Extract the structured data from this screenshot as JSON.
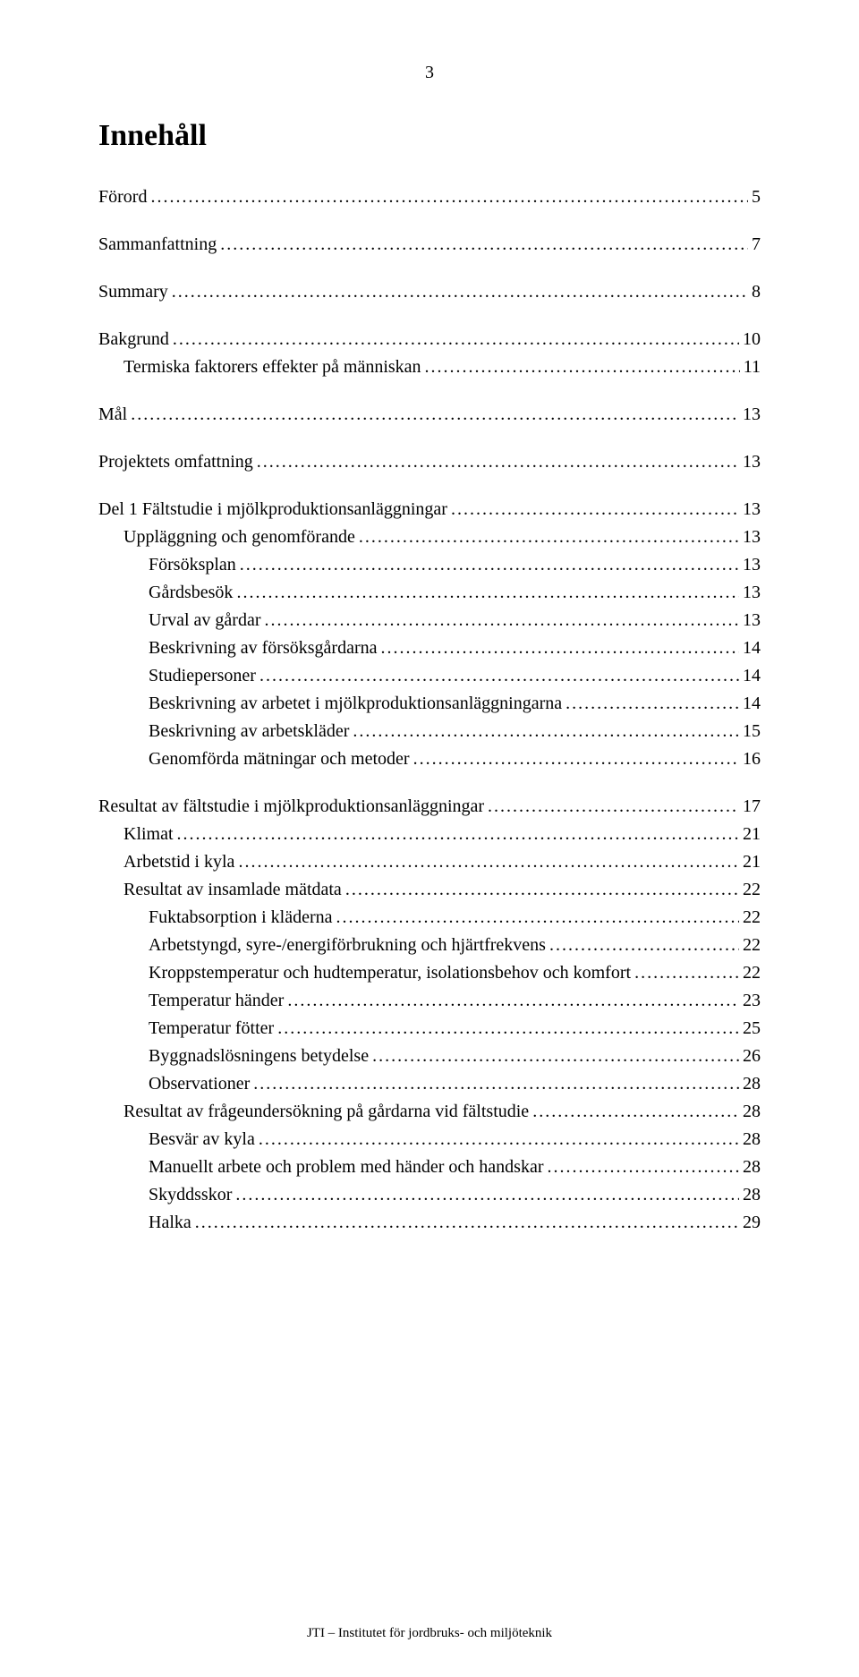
{
  "pageNumber": "3",
  "title": "Innehåll",
  "footer": "JTI – Institutet för jordbruks- och miljöteknik",
  "toc": [
    {
      "label": "Förord",
      "page": "5",
      "indent": 0,
      "gapAfter": true
    },
    {
      "label": "Sammanfattning",
      "page": "7",
      "indent": 0,
      "gapAfter": true
    },
    {
      "label": "Summary",
      "page": "8",
      "indent": 0,
      "gapAfter": true
    },
    {
      "label": "Bakgrund",
      "page": "10",
      "indent": 0,
      "gapAfter": false
    },
    {
      "label": "Termiska faktorers effekter på människan",
      "page": "11",
      "indent": 1,
      "gapAfter": true
    },
    {
      "label": "Mål",
      "page": "13",
      "indent": 0,
      "gapAfter": true
    },
    {
      "label": "Projektets omfattning",
      "page": "13",
      "indent": 0,
      "gapAfter": true
    },
    {
      "label": "Del 1 Fältstudie i mjölkproduktionsanläggningar",
      "page": "13",
      "indent": 0,
      "gapAfter": false
    },
    {
      "label": "Uppläggning och genomförande",
      "page": "13",
      "indent": 1,
      "gapAfter": false
    },
    {
      "label": "Försöksplan",
      "page": "13",
      "indent": 2,
      "gapAfter": false
    },
    {
      "label": "Gårdsbesök",
      "page": "13",
      "indent": 2,
      "gapAfter": false
    },
    {
      "label": "Urval av gårdar",
      "page": "13",
      "indent": 2,
      "gapAfter": false
    },
    {
      "label": "Beskrivning av försöksgårdarna",
      "page": "14",
      "indent": 2,
      "gapAfter": false
    },
    {
      "label": "Studiepersoner",
      "page": "14",
      "indent": 2,
      "gapAfter": false
    },
    {
      "label": "Beskrivning av arbetet i mjölkproduktionsanläggningarna",
      "page": "14",
      "indent": 2,
      "gapAfter": false
    },
    {
      "label": "Beskrivning av arbetskläder",
      "page": "15",
      "indent": 2,
      "gapAfter": false
    },
    {
      "label": "Genomförda mätningar och metoder",
      "page": "16",
      "indent": 2,
      "gapAfter": true
    },
    {
      "label": "Resultat av fältstudie i mjölkproduktionsanläggningar",
      "page": "17",
      "indent": 0,
      "gapAfter": false
    },
    {
      "label": "Klimat",
      "page": "21",
      "indent": 1,
      "gapAfter": false
    },
    {
      "label": "Arbetstid i kyla",
      "page": "21",
      "indent": 1,
      "gapAfter": false
    },
    {
      "label": "Resultat av insamlade mätdata",
      "page": "22",
      "indent": 1,
      "gapAfter": false
    },
    {
      "label": "Fuktabsorption i kläderna",
      "page": "22",
      "indent": 2,
      "gapAfter": false
    },
    {
      "label": "Arbetstyngd, syre-/energiförbrukning och hjärtfrekvens",
      "page": "22",
      "indent": 2,
      "gapAfter": false
    },
    {
      "label": "Kroppstemperatur och hudtemperatur, isolationsbehov och komfort",
      "page": "22",
      "indent": 2,
      "gapAfter": false
    },
    {
      "label": "Temperatur händer",
      "page": "23",
      "indent": 2,
      "gapAfter": false
    },
    {
      "label": "Temperatur fötter",
      "page": "25",
      "indent": 2,
      "gapAfter": false
    },
    {
      "label": "Byggnadslösningens betydelse",
      "page": "26",
      "indent": 2,
      "gapAfter": false
    },
    {
      "label": "Observationer",
      "page": "28",
      "indent": 2,
      "gapAfter": false
    },
    {
      "label": "Resultat av frågeundersökning på gårdarna vid fältstudie",
      "page": "28",
      "indent": 1,
      "gapAfter": false
    },
    {
      "label": "Besvär av kyla",
      "page": "28",
      "indent": 2,
      "gapAfter": false
    },
    {
      "label": "Manuellt arbete och problem med händer och handskar",
      "page": "28",
      "indent": 2,
      "gapAfter": false
    },
    {
      "label": "Skyddsskor",
      "page": "28",
      "indent": 2,
      "gapAfter": false
    },
    {
      "label": "Halka",
      "page": "29",
      "indent": 2,
      "gapAfter": false
    }
  ]
}
